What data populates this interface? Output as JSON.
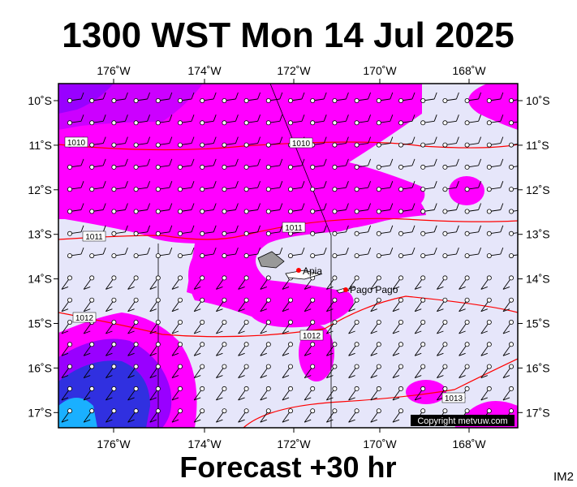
{
  "title": "1300 WST Mon 14 Jul 2025",
  "map": {
    "lon_labels": [
      "176˚W",
      "174˚W",
      "172˚W",
      "170˚W",
      "168˚W"
    ],
    "lat_labels": [
      "10˚S",
      "11˚S",
      "12˚S",
      "13˚S",
      "14˚S",
      "15˚S",
      "16˚S",
      "17˚S"
    ],
    "isobar_labels": [
      "1010",
      "1010",
      "1011",
      "1011",
      "1012",
      "1012",
      "1013"
    ],
    "places": [
      "Apia",
      "Pago Pago"
    ],
    "copyright": "Copyright metvuw.com"
  },
  "footer": {
    "forecast": "Forecast +30 hr",
    "code": "IM2"
  }
}
